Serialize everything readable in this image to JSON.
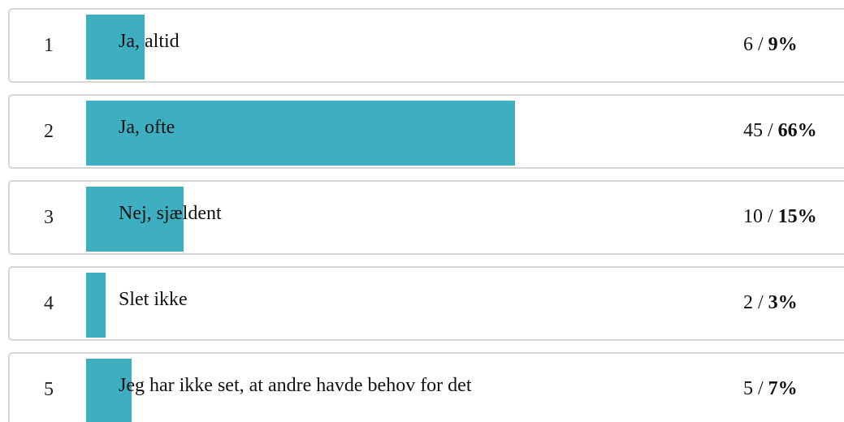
{
  "colors": {
    "bar": "#3eafc0",
    "border": "#d6d6d6"
  },
  "chart_data": {
    "type": "bar",
    "orientation": "horizontal",
    "categories": [
      "Ja, altid",
      "Ja, ofte",
      "Nej, sjældent",
      "Slet ikke",
      "Jeg har ikke set, at andre havde behov for det"
    ],
    "ranks": [
      "1",
      "2",
      "3",
      "4",
      "5"
    ],
    "counts": [
      6,
      45,
      10,
      2,
      5
    ],
    "percents": [
      9,
      66,
      15,
      3,
      7
    ],
    "count_labels": [
      "6 /",
      "45 /",
      "10 /",
      "2 /",
      "5 /"
    ],
    "percent_labels": [
      "9%",
      "66%",
      "15%",
      "3%",
      "7%"
    ],
    "xlim": [
      0,
      66
    ]
  }
}
